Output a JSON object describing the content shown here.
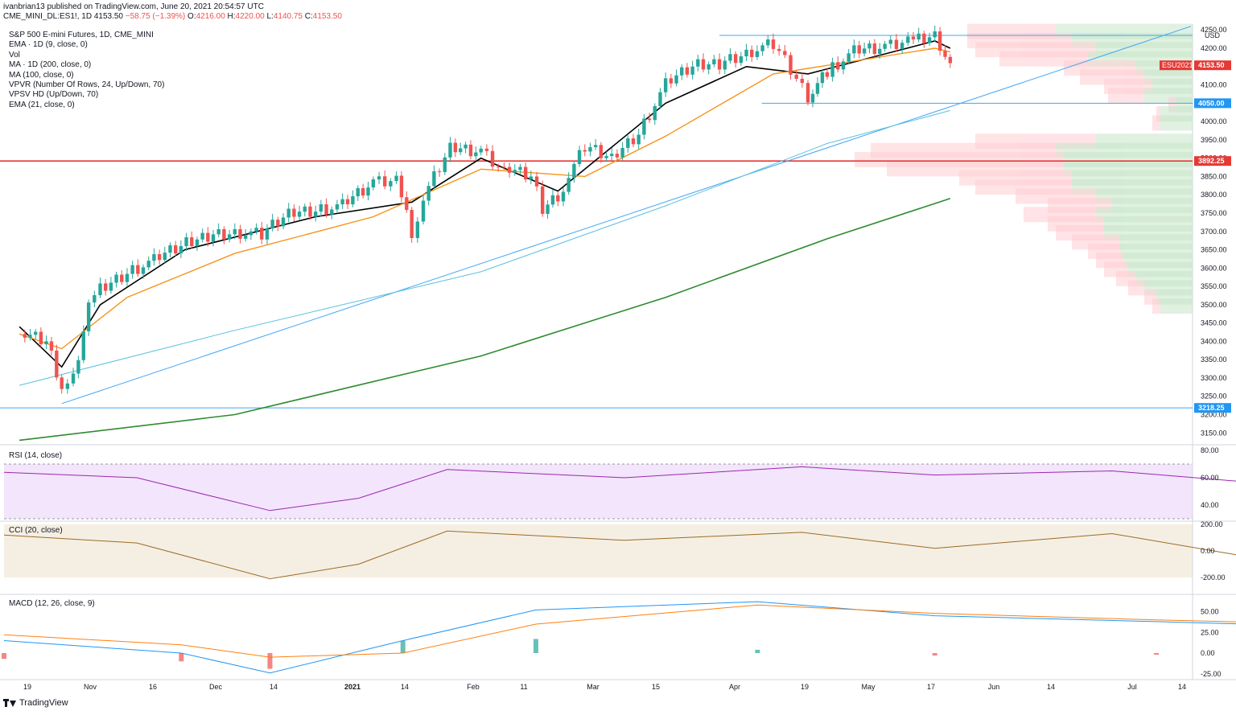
{
  "header": {
    "published": "ivanbrian13 published on TradingView.com, June 20, 2021 20:54:57 UTC",
    "symbol": "CME_MINI_DL:ES1!, 1D",
    "last": "4153.50",
    "change": "−58.75 (−1.39%)",
    "ohlc_o_label": "O:",
    "ohlc_o": "4216.00",
    "ohlc_h_label": "H:",
    "ohlc_h": "4220.00",
    "ohlc_l_label": "L:",
    "ohlc_l": "4140.75",
    "ohlc_c_label": "C:",
    "ohlc_c": "4153.50"
  },
  "legend": {
    "title": "S&P 500 E-mini Futures, 1D, CME_MINI",
    "ema9": "EMA · 1D (9, close, 0)",
    "vol": "Vol",
    "ma200": "MA · 1D (200, close, 0)",
    "ma100": "MA (100, close, 0)",
    "vpvr": "VPVR (Number Of Rows, 24, Up/Down, 70)",
    "vpsv": "VPSV HD (Up/Down, 70)",
    "ema21": "EMA (21, close, 0)"
  },
  "panes": {
    "rsi": "RSI (14, close)",
    "cci": "CCI (20, close)",
    "macd": "MACD (12, 26, close, 9)"
  },
  "footer": {
    "brand": "TradingView"
  },
  "colors": {
    "up": "#26a69a",
    "down": "#ef5350",
    "ema9": "#000000",
    "ema21": "#f7931a",
    "ma100": "#5bc0de",
    "ma200": "#2e8b2e",
    "rsi": "#9c27b0",
    "cci": "#9c6b25",
    "macd": "#2196f3",
    "signal": "#ff7f0e"
  },
  "chart_data": {
    "type": "line",
    "price_axis": {
      "ticks": [
        "4250.00",
        "4200.00",
        "4150.00",
        "4100.00",
        "4050.00",
        "4000.00",
        "3950.00",
        "3900.00",
        "3850.00",
        "3800.00",
        "3750.00",
        "3700.00",
        "3650.00",
        "3600.00",
        "3550.00",
        "3500.00",
        "3450.00",
        "3400.00",
        "3350.00",
        "3300.00",
        "3250.00",
        "3200.00",
        "3150.00"
      ],
      "currency": "USD",
      "labels": [
        {
          "text": "4050.00",
          "value": 4050,
          "style": "blue"
        },
        {
          "text": "3892.25",
          "value": 3892.25,
          "style": "red"
        },
        {
          "text": "3218.25",
          "value": 3218.25,
          "style": "blue"
        },
        {
          "text": "4153.50",
          "value": 4153.5,
          "style": "red",
          "prefix": "ESU2021"
        }
      ]
    },
    "time_axis": [
      "19",
      "Nov",
      "16",
      "Dec",
      "14",
      "2021",
      "14",
      "Feb",
      "11",
      "Mar",
      "15",
      "Apr",
      "19",
      "May",
      "17",
      "Jun",
      "14",
      "Jul",
      "14"
    ],
    "horizontal_lines": [
      3892.25,
      3218.25,
      4050.0,
      4235.0
    ],
    "series": [
      {
        "name": "S&P 500 E-mini Futures",
        "kind": "close",
        "points": [
          [
            "2020-10-19",
            3420
          ],
          [
            "2020-10-26",
            3400
          ],
          [
            "2020-10-30",
            3270
          ],
          [
            "2020-11-02",
            3300
          ],
          [
            "2020-11-06",
            3500
          ],
          [
            "2020-11-09",
            3540
          ],
          [
            "2020-11-16",
            3590
          ],
          [
            "2020-11-23",
            3620
          ],
          [
            "2020-11-30",
            3660
          ],
          [
            "2020-12-07",
            3690
          ],
          [
            "2020-12-14",
            3700
          ],
          [
            "2020-12-21",
            3690
          ],
          [
            "2020-12-28",
            3750
          ],
          [
            "2021-01-04",
            3760
          ],
          [
            "2021-01-11",
            3770
          ],
          [
            "2021-01-19",
            3830
          ],
          [
            "2021-01-25",
            3840
          ],
          [
            "2021-01-29",
            3700
          ],
          [
            "2021-02-01",
            3790
          ],
          [
            "2021-02-08",
            3930
          ],
          [
            "2021-02-16",
            3920
          ],
          [
            "2021-02-22",
            3870
          ],
          [
            "2021-03-01",
            3850
          ],
          [
            "2021-03-04",
            3760
          ],
          [
            "2021-03-08",
            3800
          ],
          [
            "2021-03-15",
            3930
          ],
          [
            "2021-03-22",
            3900
          ],
          [
            "2021-03-29",
            3970
          ],
          [
            "2021-04-05",
            4100
          ],
          [
            "2021-04-12",
            4150
          ],
          [
            "2021-04-19",
            4160
          ],
          [
            "2021-04-26",
            4190
          ],
          [
            "2021-05-03",
            4210
          ],
          [
            "2021-05-12",
            4070
          ],
          [
            "2021-05-17",
            4140
          ],
          [
            "2021-05-24",
            4190
          ],
          [
            "2021-06-01",
            4200
          ],
          [
            "2021-06-07",
            4220
          ],
          [
            "2021-06-14",
            4240
          ],
          [
            "2021-06-18",
            4153.5
          ]
        ]
      },
      {
        "name": "EMA 9",
        "points": [
          [
            "2020-10-19",
            3440
          ],
          [
            "2020-10-30",
            3330
          ],
          [
            "2020-11-09",
            3500
          ],
          [
            "2020-12-01",
            3650
          ],
          [
            "2021-01-04",
            3740
          ],
          [
            "2021-01-29",
            3780
          ],
          [
            "2021-02-16",
            3900
          ],
          [
            "2021-03-08",
            3810
          ],
          [
            "2021-04-05",
            4050
          ],
          [
            "2021-04-26",
            4150
          ],
          [
            "2021-05-12",
            4130
          ],
          [
            "2021-06-14",
            4220
          ],
          [
            "2021-06-18",
            4200
          ]
        ]
      },
      {
        "name": "EMA 21",
        "points": [
          [
            "2020-10-19",
            3420
          ],
          [
            "2020-10-30",
            3380
          ],
          [
            "2020-11-16",
            3520
          ],
          [
            "2020-12-14",
            3640
          ],
          [
            "2021-01-19",
            3740
          ],
          [
            "2021-02-16",
            3870
          ],
          [
            "2021-03-15",
            3850
          ],
          [
            "2021-04-05",
            3960
          ],
          [
            "2021-05-03",
            4130
          ],
          [
            "2021-06-14",
            4200
          ],
          [
            "2021-06-18",
            4190
          ]
        ]
      },
      {
        "name": "MA 100",
        "points": [
          [
            "2020-10-19",
            3280
          ],
          [
            "2020-12-14",
            3430
          ],
          [
            "2021-02-16",
            3590
          ],
          [
            "2021-04-05",
            3770
          ],
          [
            "2021-05-17",
            3940
          ],
          [
            "2021-06-18",
            4030
          ]
        ]
      },
      {
        "name": "MA 200",
        "points": [
          [
            "2020-10-19",
            3130
          ],
          [
            "2020-12-14",
            3200
          ],
          [
            "2021-02-16",
            3360
          ],
          [
            "2021-04-05",
            3520
          ],
          [
            "2021-05-17",
            3680
          ],
          [
            "2021-06-18",
            3790
          ]
        ]
      }
    ],
    "rsi": {
      "axis": [
        "80.00",
        "60.00",
        "40.00"
      ],
      "points": [
        [
          0,
          64
        ],
        [
          3,
          60
        ],
        [
          6,
          36
        ],
        [
          8,
          45
        ],
        [
          10,
          66
        ],
        [
          14,
          60
        ],
        [
          18,
          68
        ],
        [
          21,
          62
        ],
        [
          25,
          65
        ],
        [
          28,
          57
        ],
        [
          30,
          69
        ],
        [
          33,
          63
        ],
        [
          36,
          55
        ],
        [
          37,
          69
        ],
        [
          40,
          64
        ],
        [
          43,
          47
        ],
        [
          47,
          62
        ],
        [
          50,
          60
        ],
        [
          53,
          67
        ],
        [
          56,
          61
        ],
        [
          58,
          44
        ],
        [
          62,
          57
        ],
        [
          66,
          54
        ],
        [
          68,
          67
        ],
        [
          71,
          73
        ],
        [
          73,
          68
        ],
        [
          75,
          56
        ],
        [
          76,
          44
        ],
        [
          78,
          59
        ],
        [
          80,
          52
        ],
        [
          82,
          61
        ],
        [
          84,
          58
        ],
        [
          86,
          60
        ],
        [
          88,
          60
        ],
        [
          89,
          51
        ],
        [
          91,
          42
        ]
      ]
    },
    "cci": {
      "axis": [
        "200.00",
        "0.00",
        "-200.00"
      ],
      "points": [
        [
          0,
          120
        ],
        [
          3,
          60
        ],
        [
          6,
          -210
        ],
        [
          8,
          -100
        ],
        [
          10,
          150
        ],
        [
          14,
          80
        ],
        [
          18,
          140
        ],
        [
          21,
          20
        ],
        [
          25,
          130
        ],
        [
          28,
          -40
        ],
        [
          30,
          220
        ],
        [
          33,
          90
        ],
        [
          36,
          -40
        ],
        [
          37,
          160
        ],
        [
          40,
          70
        ],
        [
          43,
          -200
        ],
        [
          47,
          100
        ],
        [
          50,
          60
        ],
        [
          53,
          160
        ],
        [
          56,
          90
        ],
        [
          58,
          -110
        ],
        [
          62,
          90
        ],
        [
          66,
          -10
        ],
        [
          68,
          100
        ],
        [
          71,
          230
        ],
        [
          73,
          130
        ],
        [
          75,
          30
        ],
        [
          76,
          -300
        ],
        [
          78,
          -30
        ],
        [
          80,
          -100
        ],
        [
          82,
          80
        ],
        [
          84,
          60
        ],
        [
          86,
          110
        ],
        [
          88,
          100
        ],
        [
          89,
          30
        ],
        [
          91,
          -180
        ]
      ]
    },
    "macd": {
      "axis": [
        "50.00",
        "25.00",
        "0.00",
        "-25.00"
      ],
      "macd": [
        [
          0,
          15
        ],
        [
          4,
          0
        ],
        [
          6,
          -24
        ],
        [
          9,
          15
        ],
        [
          12,
          52
        ],
        [
          17,
          62
        ],
        [
          21,
          45
        ],
        [
          26,
          38
        ],
        [
          30,
          32
        ],
        [
          33,
          48
        ],
        [
          36,
          46
        ],
        [
          37,
          36
        ],
        [
          40,
          42
        ],
        [
          43,
          10
        ],
        [
          47,
          20
        ],
        [
          53,
          55
        ],
        [
          56,
          65
        ],
        [
          58,
          34
        ],
        [
          62,
          35
        ],
        [
          66,
          35
        ],
        [
          68,
          66
        ],
        [
          71,
          70
        ],
        [
          74,
          50
        ],
        [
          76,
          20
        ],
        [
          78,
          8
        ],
        [
          80,
          20
        ],
        [
          84,
          26
        ],
        [
          86,
          26
        ],
        [
          88,
          24
        ],
        [
          89,
          20
        ],
        [
          91,
          13
        ]
      ],
      "signal": [
        [
          0,
          22
        ],
        [
          4,
          10
        ],
        [
          6,
          -5
        ],
        [
          9,
          0
        ],
        [
          12,
          35
        ],
        [
          17,
          58
        ],
        [
          21,
          48
        ],
        [
          26,
          40
        ],
        [
          30,
          35
        ],
        [
          33,
          42
        ],
        [
          36,
          45
        ],
        [
          37,
          40
        ],
        [
          40,
          42
        ],
        [
          43,
          20
        ],
        [
          47,
          15
        ],
        [
          53,
          40
        ],
        [
          56,
          55
        ],
        [
          58,
          40
        ],
        [
          62,
          38
        ],
        [
          66,
          33
        ],
        [
          68,
          55
        ],
        [
          71,
          66
        ],
        [
          74,
          55
        ],
        [
          76,
          35
        ],
        [
          78,
          18
        ],
        [
          80,
          18
        ],
        [
          84,
          24
        ],
        [
          86,
          25
        ],
        [
          88,
          25
        ],
        [
          89,
          22
        ],
        [
          91,
          20
        ]
      ]
    }
  }
}
